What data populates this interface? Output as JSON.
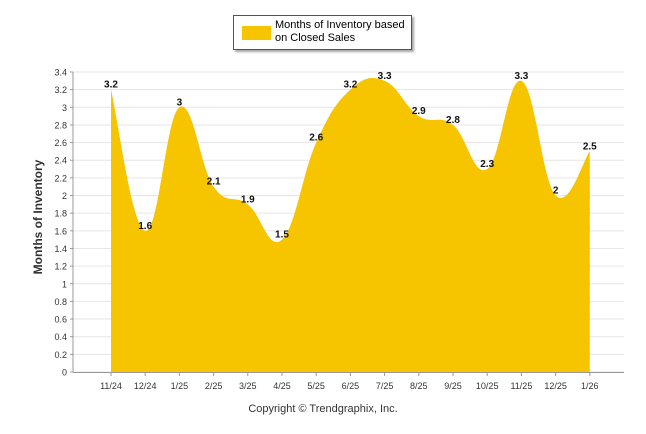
{
  "chart_data": {
    "type": "area",
    "categories": [
      "11/24",
      "12/24",
      "1/25",
      "2/25",
      "3/25",
      "4/25",
      "5/25",
      "6/25",
      "7/25",
      "8/25",
      "9/25",
      "10/25",
      "11/25",
      "12/25",
      "1/26"
    ],
    "series": [
      {
        "name": "Months of Inventory based on Closed Sales",
        "values": [
          3.2,
          1.6,
          3,
          2.1,
          1.9,
          1.5,
          2.6,
          3.2,
          3.3,
          2.9,
          2.8,
          2.3,
          3.3,
          2,
          2.5
        ],
        "labels": [
          "3.2",
          "1.6",
          "3",
          "2.1",
          "1.9",
          "1.5",
          "2.6",
          "3.2",
          "3.3",
          "2.9",
          "2.8",
          "2.3",
          "3.3",
          "2",
          "2.5"
        ],
        "color": "#f7c400"
      }
    ],
    "title": "",
    "xlabel": "",
    "ylabel": "Months of Inventory",
    "ylim": [
      0,
      3.4
    ],
    "yticks": [
      "0",
      "0.2",
      "0.4",
      "0.6",
      "0.8",
      "1",
      "1.2",
      "1.4",
      "1.6",
      "1.8",
      "2",
      "2.2",
      "2.4",
      "2.6",
      "2.8",
      "3",
      "3.2",
      "3.4"
    ],
    "grid": true,
    "legend_position": "top-center"
  },
  "legend": {
    "label": "Months of Inventory based on Closed Sales"
  },
  "copyright": "Copyright © Trendgraphix, Inc."
}
